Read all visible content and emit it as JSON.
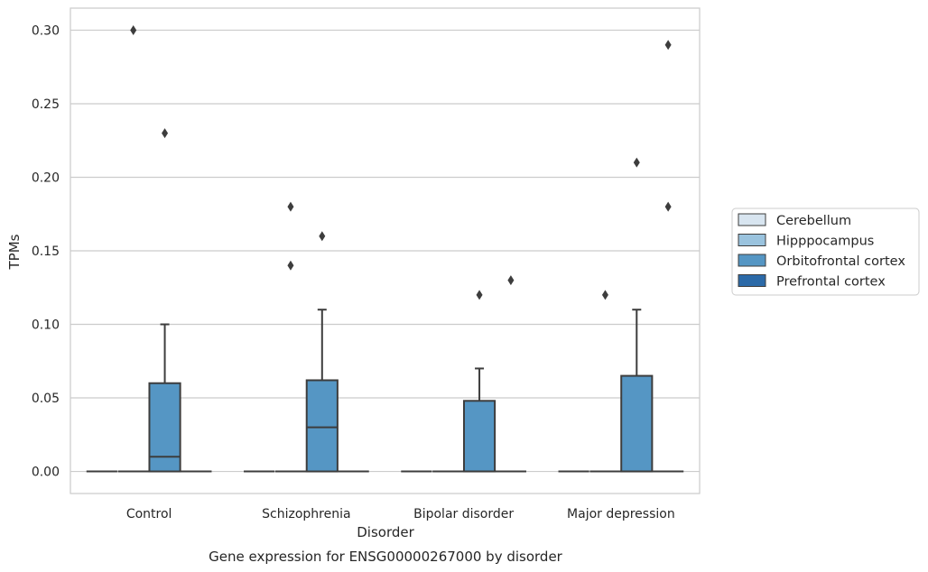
{
  "chart_data": {
    "type": "boxplot",
    "caption": "Gene expression for ENSG00000267000 by disorder",
    "xlabel": "Disorder",
    "ylabel": "TPMs",
    "ylim": [
      -0.015,
      0.315
    ],
    "yticks": [
      "0.00",
      "0.05",
      "0.10",
      "0.15",
      "0.20",
      "0.25",
      "0.30"
    ],
    "categories": [
      "Control",
      "Schizophrenia",
      "Bipolar disorder",
      "Major depression"
    ],
    "grid": "horizontal",
    "legend_position": "right",
    "series": [
      {
        "name": "Cerebellum",
        "color": "#d8e5f0",
        "boxes": [
          {
            "category": "Control",
            "min": 0,
            "q1": 0,
            "median": 0,
            "q3": 0,
            "max": 0,
            "outliers": []
          },
          {
            "category": "Schizophrenia",
            "min": 0,
            "q1": 0,
            "median": 0,
            "q3": 0,
            "max": 0,
            "outliers": []
          },
          {
            "category": "Bipolar disorder",
            "min": 0,
            "q1": 0,
            "median": 0,
            "q3": 0,
            "max": 0,
            "outliers": []
          },
          {
            "category": "Major depression",
            "min": 0,
            "q1": 0,
            "median": 0,
            "q3": 0,
            "max": 0,
            "outliers": []
          }
        ]
      },
      {
        "name": "Hipppocampus",
        "color": "#9ac3de",
        "boxes": [
          {
            "category": "Control",
            "min": 0,
            "q1": 0,
            "median": 0,
            "q3": 0,
            "max": 0,
            "outliers": [
              0.3
            ]
          },
          {
            "category": "Schizophrenia",
            "min": 0,
            "q1": 0,
            "median": 0,
            "q3": 0,
            "max": 0,
            "outliers": [
              0.14,
              0.18
            ]
          },
          {
            "category": "Bipolar disorder",
            "min": 0,
            "q1": 0,
            "median": 0,
            "q3": 0,
            "max": 0,
            "outliers": []
          },
          {
            "category": "Major depression",
            "min": 0,
            "q1": 0,
            "median": 0,
            "q3": 0,
            "max": 0,
            "outliers": [
              0.12
            ]
          }
        ]
      },
      {
        "name": "Orbitofrontal cortex",
        "color": "#5596c4",
        "boxes": [
          {
            "category": "Control",
            "min": 0,
            "q1": 0,
            "median": 0.01,
            "q3": 0.06,
            "max": 0.1,
            "outliers": [
              0.23
            ]
          },
          {
            "category": "Schizophrenia",
            "min": 0,
            "q1": 0,
            "median": 0.03,
            "q3": 0.062,
            "max": 0.11,
            "outliers": [
              0.16
            ]
          },
          {
            "category": "Bipolar disorder",
            "min": 0,
            "q1": 0,
            "median": 0,
            "q3": 0.048,
            "max": 0.07,
            "outliers": [
              0.12
            ]
          },
          {
            "category": "Major depression",
            "min": 0,
            "q1": 0,
            "median": 0,
            "q3": 0.065,
            "max": 0.11,
            "outliers": [
              0.21
            ]
          }
        ]
      },
      {
        "name": "Prefrontal cortex",
        "color": "#2c6aa8",
        "boxes": [
          {
            "category": "Control",
            "min": 0,
            "q1": 0,
            "median": 0,
            "q3": 0,
            "max": 0,
            "outliers": []
          },
          {
            "category": "Schizophrenia",
            "min": 0,
            "q1": 0,
            "median": 0,
            "q3": 0,
            "max": 0,
            "outliers": []
          },
          {
            "category": "Bipolar disorder",
            "min": 0,
            "q1": 0,
            "median": 0,
            "q3": 0,
            "max": 0,
            "outliers": [
              0.13
            ]
          },
          {
            "category": "Major depression",
            "min": 0,
            "q1": 0,
            "median": 0,
            "q3": 0,
            "max": 0,
            "outliers": [
              0.18,
              0.29
            ]
          }
        ]
      }
    ]
  }
}
